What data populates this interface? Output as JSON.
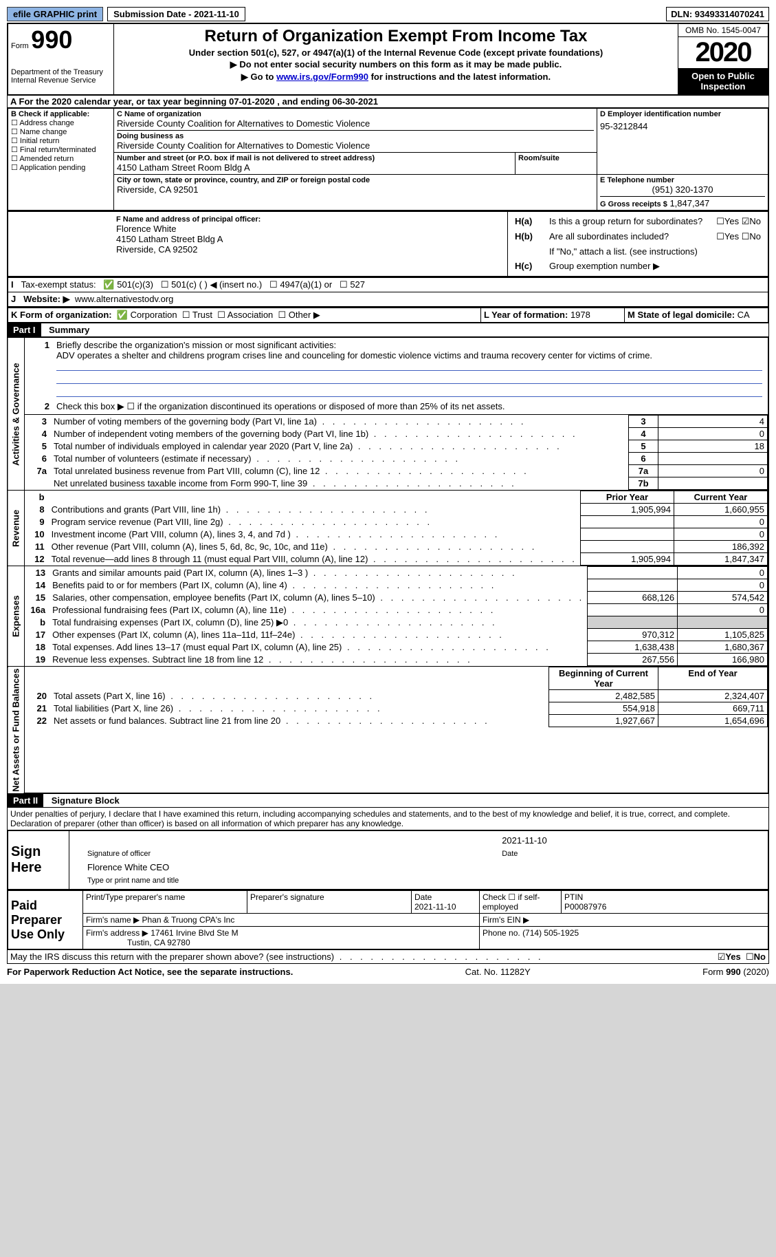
{
  "topbar": {
    "efile": "efile GRAPHIC print",
    "submission": "Submission Date - 2021-11-10",
    "dln": "DLN: 93493314070241"
  },
  "header": {
    "form": "Form",
    "formno": "990",
    "dept": "Department of the Treasury",
    "irs": "Internal Revenue Service",
    "title": "Return of Organization Exempt From Income Tax",
    "sub1": "Under section 501(c), 527, or 4947(a)(1) of the Internal Revenue Code (except private foundations)",
    "sub2": "▶ Do not enter social security numbers on this form as it may be made public.",
    "sub3_pre": "▶ Go to ",
    "sub3_link": "www.irs.gov/Form990",
    "sub3_post": " for instructions and the latest information.",
    "omb": "OMB No. 1545-0047",
    "year": "2020",
    "inspect": "Open to Public Inspection"
  },
  "lineA": "For the 2020 calendar year, or tax year beginning 07-01-2020    , and ending 06-30-2021",
  "boxB": {
    "title": "B Check if applicable:",
    "items": [
      "Address change",
      "Name change",
      "Initial return",
      "Final return/terminated",
      "Amended return",
      "Application pending"
    ]
  },
  "boxC": {
    "labelC": "C Name of organization",
    "name": "Riverside County Coalition for Alternatives to Domestic Violence",
    "dba_label": "Doing business as",
    "dba": "Riverside County Coalition for Alternatives to Domestic Violence",
    "street_label": "Number and street (or P.O. box if mail is not delivered to street address)",
    "room_label": "Room/suite",
    "street": "4150 Latham Street Room Bldg A",
    "city_label": "City or town, state or province, country, and ZIP or foreign postal code",
    "city": "Riverside, CA  92501"
  },
  "boxD": {
    "label": "D Employer identification number",
    "val": "95-3212844"
  },
  "boxE": {
    "label": "E Telephone number",
    "val": "(951) 320-1370"
  },
  "boxG": {
    "label": "G Gross receipts $",
    "val": "1,847,347"
  },
  "boxF": {
    "label": "F Name and address of principal officer:",
    "name": "Florence White",
    "addr1": "4150 Latham Street Bldg A",
    "addr2": "Riverside, CA  92502"
  },
  "boxH": {
    "ha_label": "H(a)",
    "ha_text": "Is this a group return for subordinates?",
    "hb_label": "H(b)",
    "hb_text": "Are all subordinates included?",
    "hb_note": "If \"No,\" attach a list. (see instructions)",
    "hc_label": "H(c)",
    "hc_text": "Group exemption number ▶",
    "yes": "Yes",
    "no": "No"
  },
  "lineI": {
    "label": "Tax-exempt status:",
    "opts": [
      "501(c)(3)",
      "501(c) (  ) ◀ (insert no.)",
      "4947(a)(1) or",
      "527"
    ]
  },
  "lineJ": {
    "label": "Website: ▶",
    "val": "www.alternativestodv.org"
  },
  "lineK": {
    "label": "K Form of organization:",
    "opts": [
      "Corporation",
      "Trust",
      "Association",
      "Other ▶"
    ]
  },
  "lineL": {
    "label": "L Year of formation:",
    "val": "1978"
  },
  "lineM": {
    "label": "M State of legal domicile:",
    "val": "CA"
  },
  "part1": {
    "hdr": "Part I",
    "title": "Summary",
    "q1_label": "1",
    "q1": "Briefly describe the organization's mission or most significant activities:",
    "q1_text": "ADV operates a shelter and childrens program crises line and counceling for domestic violence victims and trauma recovery center for victims of crime.",
    "q2_label": "2",
    "q2": "Check this box ▶ ☐  if the organization discontinued its operations or disposed of more than 25% of its net assets.",
    "lines_gov": [
      {
        "n": "3",
        "t": "Number of voting members of the governing body (Part VI, line 1a)",
        "box": "3",
        "v": "4"
      },
      {
        "n": "4",
        "t": "Number of independent voting members of the governing body (Part VI, line 1b)",
        "box": "4",
        "v": "0"
      },
      {
        "n": "5",
        "t": "Total number of individuals employed in calendar year 2020 (Part V, line 2a)",
        "box": "5",
        "v": "18"
      },
      {
        "n": "6",
        "t": "Total number of volunteers (estimate if necessary)",
        "box": "6",
        "v": ""
      },
      {
        "n": "7a",
        "t": "Total unrelated business revenue from Part VIII, column (C), line 12",
        "box": "7a",
        "v": "0"
      },
      {
        "n": "",
        "t": "Net unrelated business taxable income from Form 990-T, line 39",
        "box": "7b",
        "v": ""
      }
    ],
    "colheads": {
      "b": "b",
      "py": "Prior Year",
      "cy": "Current Year"
    },
    "lines_rev": [
      {
        "n": "8",
        "t": "Contributions and grants (Part VIII, line 1h)",
        "py": "1,905,994",
        "cy": "1,660,955"
      },
      {
        "n": "9",
        "t": "Program service revenue (Part VIII, line 2g)",
        "py": "",
        "cy": "0"
      },
      {
        "n": "10",
        "t": "Investment income (Part VIII, column (A), lines 3, 4, and 7d )",
        "py": "",
        "cy": "0"
      },
      {
        "n": "11",
        "t": "Other revenue (Part VIII, column (A), lines 5, 6d, 8c, 9c, 10c, and 11e)",
        "py": "",
        "cy": "186,392"
      },
      {
        "n": "12",
        "t": "Total revenue—add lines 8 through 11 (must equal Part VIII, column (A), line 12)",
        "py": "1,905,994",
        "cy": "1,847,347"
      }
    ],
    "lines_exp": [
      {
        "n": "13",
        "t": "Grants and similar amounts paid (Part IX, column (A), lines 1–3 )",
        "py": "",
        "cy": "0"
      },
      {
        "n": "14",
        "t": "Benefits paid to or for members (Part IX, column (A), line 4)",
        "py": "",
        "cy": "0"
      },
      {
        "n": "15",
        "t": "Salaries, other compensation, employee benefits (Part IX, column (A), lines 5–10)",
        "py": "668,126",
        "cy": "574,542"
      },
      {
        "n": "16a",
        "t": "Professional fundraising fees (Part IX, column (A), line 11e)",
        "py": "",
        "cy": "0"
      },
      {
        "n": "b",
        "t": "Total fundraising expenses (Part IX, column (D), line 25) ▶0",
        "py": "grey",
        "cy": "grey"
      },
      {
        "n": "17",
        "t": "Other expenses (Part IX, column (A), lines 11a–11d, 11f–24e)",
        "py": "970,312",
        "cy": "1,105,825"
      },
      {
        "n": "18",
        "t": "Total expenses. Add lines 13–17 (must equal Part IX, column (A), line 25)",
        "py": "1,638,438",
        "cy": "1,680,367"
      },
      {
        "n": "19",
        "t": "Revenue less expenses. Subtract line 18 from line 12",
        "py": "267,556",
        "cy": "166,980"
      }
    ],
    "colheads2": {
      "py": "Beginning of Current Year",
      "cy": "End of Year"
    },
    "lines_net": [
      {
        "n": "20",
        "t": "Total assets (Part X, line 16)",
        "py": "2,482,585",
        "cy": "2,324,407"
      },
      {
        "n": "21",
        "t": "Total liabilities (Part X, line 26)",
        "py": "554,918",
        "cy": "669,711"
      },
      {
        "n": "22",
        "t": "Net assets or fund balances. Subtract line 21 from line 20",
        "py": "1,927,667",
        "cy": "1,654,696"
      }
    ],
    "side_gov": "Activities & Governance",
    "side_rev": "Revenue",
    "side_exp": "Expenses",
    "side_net": "Net Assets or Fund Balances"
  },
  "part2": {
    "hdr": "Part II",
    "title": "Signature Block",
    "decl": "Under penalties of perjury, I declare that I have examined this return, including accompanying schedules and statements, and to the best of my knowledge and belief, it is true, correct, and complete. Declaration of preparer (other than officer) is based on all information of which preparer has any knowledge.",
    "sign_here": "Sign Here",
    "sig_officer": "Signature of officer",
    "sig_date": "2021-11-10",
    "date_lbl": "Date",
    "officer_name": "Florence White CEO",
    "type_name": "Type or print name and title",
    "paid": "Paid Preparer Use Only",
    "prep_name_lbl": "Print/Type preparer's name",
    "prep_sig_lbl": "Preparer's signature",
    "prep_date_lbl": "Date",
    "prep_date": "2021-11-10",
    "check_if": "Check ☐ if self-employed",
    "ptin_lbl": "PTIN",
    "ptin": "P00087976",
    "firm_name_lbl": "Firm's name   ▶",
    "firm_name": "Phan & Truong CPA's Inc",
    "firm_ein_lbl": "Firm's EIN ▶",
    "firm_addr_lbl": "Firm's address ▶",
    "firm_addr1": "17461 Irvine Blvd Ste M",
    "firm_addr2": "Tustin, CA  92780",
    "phone_lbl": "Phone no.",
    "phone": "(714) 505-1925",
    "discuss": "May the IRS discuss this return with the preparer shown above? (see instructions)",
    "yes": "Yes",
    "no": "No"
  },
  "footer": {
    "left": "For Paperwork Reduction Act Notice, see the separate instructions.",
    "mid": "Cat. No. 11282Y",
    "right": "Form 990 (2020)"
  }
}
